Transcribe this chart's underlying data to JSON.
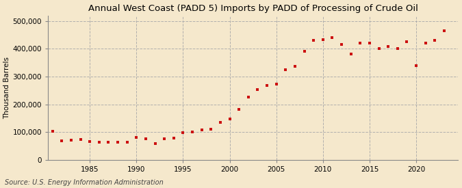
{
  "title": "Annual West Coast (PADD 5) Imports by PADD of Processing of Crude Oil",
  "ylabel": "Thousand Barrels",
  "source": "Source: U.S. Energy Information Administration",
  "background_color": "#f5e8cc",
  "plot_background_color": "#f5e8cc",
  "dot_color": "#cc1111",
  "years": [
    1981,
    1982,
    1983,
    1984,
    1985,
    1986,
    1987,
    1988,
    1989,
    1990,
    1991,
    1992,
    1993,
    1994,
    1995,
    1996,
    1997,
    1998,
    1999,
    2000,
    2001,
    2002,
    2003,
    2004,
    2005,
    2006,
    2007,
    2008,
    2009,
    2010,
    2011,
    2012,
    2013,
    2014,
    2015,
    2016,
    2017,
    2018,
    2019,
    2020,
    2021,
    2022,
    2023
  ],
  "values": [
    104000,
    68000,
    72000,
    73000,
    65000,
    63000,
    64000,
    63000,
    64000,
    80000,
    75000,
    60000,
    75000,
    78000,
    98000,
    100000,
    107000,
    110000,
    135000,
    148000,
    183000,
    227000,
    253000,
    268000,
    273000,
    324000,
    337000,
    390000,
    430000,
    433000,
    440000,
    415000,
    380000,
    420000,
    420000,
    400000,
    407000,
    400000,
    425000,
    338000,
    420000,
    430000,
    465000
  ],
  "xlim": [
    1980.5,
    2024.5
  ],
  "ylim": [
    0,
    520000
  ],
  "yticks": [
    0,
    100000,
    200000,
    300000,
    400000,
    500000
  ],
  "ytick_labels": [
    "0",
    "100,000",
    "200,000",
    "300,000",
    "400,000",
    "500,000"
  ],
  "xticks": [
    1985,
    1990,
    1995,
    2000,
    2005,
    2010,
    2015,
    2020
  ],
  "grid_color": "#aaaaaa",
  "title_fontsize": 9.5,
  "axis_fontsize": 7.5,
  "source_fontsize": 7
}
